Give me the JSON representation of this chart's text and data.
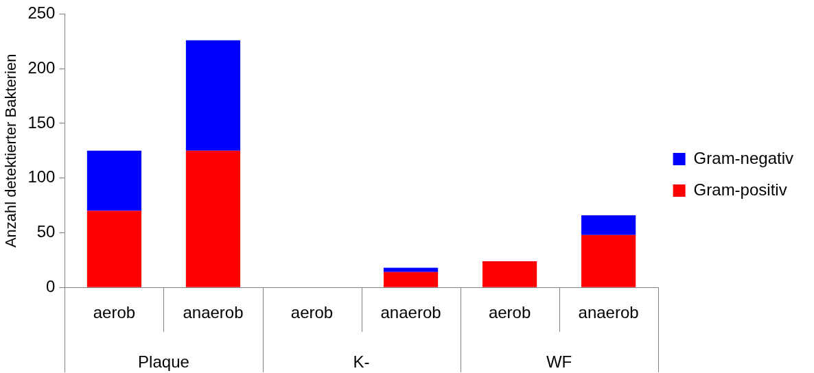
{
  "chart_data": {
    "type": "bar",
    "stacked": true,
    "ylabel": "Anzahl detektierter Bakterien",
    "categories": [
      "aerob",
      "anaerob",
      "aerob",
      "anaerob",
      "aerob",
      "anaerob"
    ],
    "annotations": [
      "Plaque",
      "K-",
      "WF"
    ],
    "series": [
      {
        "name": "Gram-positiv",
        "color": "#ff0000",
        "values": [
          70,
          125,
          0,
          14,
          24,
          48
        ]
      },
      {
        "name": "Gram-negativ",
        "color": "#0000ff",
        "values": [
          55,
          101,
          0,
          4,
          0,
          18
        ]
      }
    ],
    "ylim": [
      0,
      250
    ],
    "yticks": [
      0,
      50,
      100,
      150,
      200,
      250
    ],
    "grid": false,
    "legend": "right"
  }
}
